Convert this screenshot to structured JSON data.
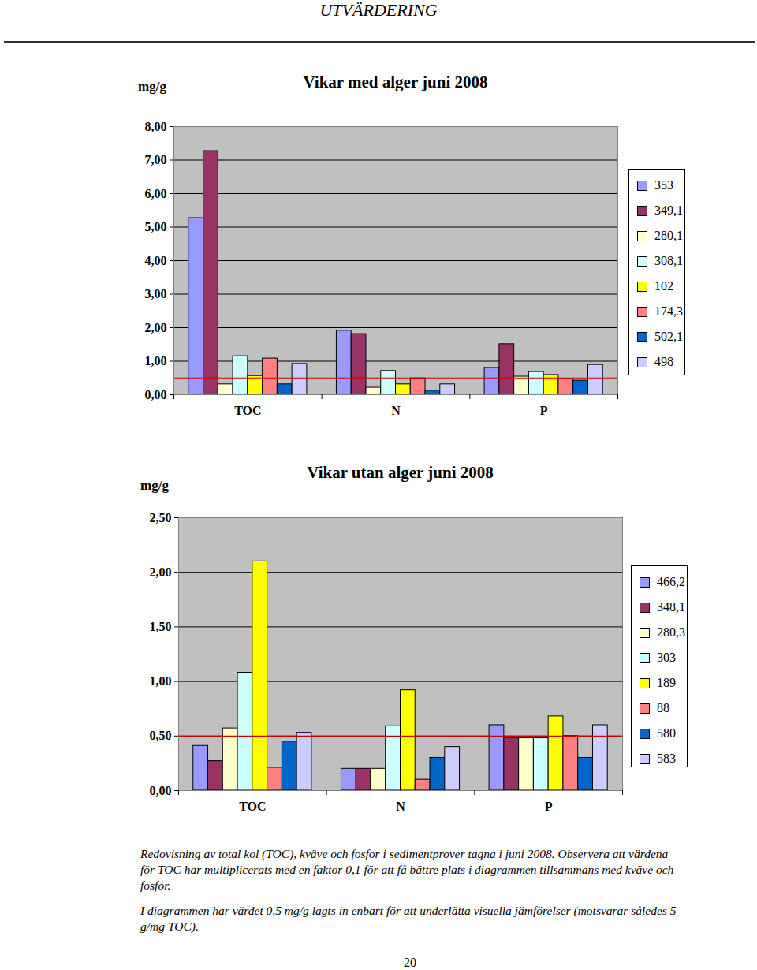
{
  "page": {
    "header": "UTVÄRDERING",
    "caption": [
      "Redovisning av total kol (TOC), kväve och fosfor i sedimentprover tagna i juni 2008. Observera att värdena för TOC har multiplicerats med en faktor 0,1 för att få bättre plats i diagrammen tillsammans med kväve och fosfor.",
      "I diagrammen har värdet 0,5 mg/g lagts in enbart för att underlätta visuella jämförelser (motsvarar således 5 g/mg TOC)."
    ],
    "page_number": 20
  },
  "chart_data": [
    {
      "type": "bar",
      "title": "Vikar med alger juni 2008",
      "ylabel": "mg/g",
      "categories": [
        "TOC",
        "N",
        "P"
      ],
      "series": [
        {
          "name": "353",
          "color": "#9999ff",
          "values": [
            5.27,
            1.91,
            0.8
          ]
        },
        {
          "name": "349,1",
          "color": "#993366",
          "values": [
            7.27,
            1.81,
            1.51
          ]
        },
        {
          "name": "280,1",
          "color": "#ffffcc",
          "values": [
            0.31,
            0.21,
            0.54
          ]
        },
        {
          "name": "308,1",
          "color": "#ccffff",
          "values": [
            1.15,
            0.71,
            0.68
          ]
        },
        {
          "name": "102",
          "color": "#ffff00",
          "values": [
            0.56,
            0.31,
            0.59
          ]
        },
        {
          "name": "174,3",
          "color": "#ff8080",
          "values": [
            1.08,
            0.49,
            0.47
          ]
        },
        {
          "name": "502,1",
          "color": "#0066cc",
          "values": [
            0.31,
            0.12,
            0.42
          ]
        },
        {
          "name": "498",
          "color": "#ccccff",
          "values": [
            0.92,
            0.31,
            0.89
          ]
        }
      ],
      "reference_line": 0.5,
      "ylim": [
        0,
        8
      ],
      "yticks": [
        {
          "value": 0,
          "label": "0,00"
        },
        {
          "value": 1,
          "label": "1,00"
        },
        {
          "value": 2,
          "label": "2,00"
        },
        {
          "value": 3,
          "label": "3,00"
        },
        {
          "value": 4,
          "label": "4,00"
        },
        {
          "value": 5,
          "label": "5,00"
        },
        {
          "value": 6,
          "label": "6,00"
        },
        {
          "value": 7,
          "label": "7,00"
        },
        {
          "value": 8,
          "label": "8,00"
        }
      ],
      "grid": true,
      "legend": "right"
    },
    {
      "type": "bar",
      "title": "Vikar utan alger juni 2008",
      "ylabel": "mg/g",
      "categories": [
        "TOC",
        "N",
        "P"
      ],
      "series": [
        {
          "name": "466,2",
          "color": "#9999ff",
          "values": [
            0.41,
            0.2,
            0.6
          ]
        },
        {
          "name": "348,1",
          "color": "#993366",
          "values": [
            0.27,
            0.2,
            0.48
          ]
        },
        {
          "name": "280,3",
          "color": "#ffffcc",
          "values": [
            0.57,
            0.2,
            0.48
          ]
        },
        {
          "name": "303",
          "color": "#ccffff",
          "values": [
            1.08,
            0.59,
            0.48
          ]
        },
        {
          "name": "189",
          "color": "#ffff00",
          "values": [
            2.1,
            0.92,
            0.68
          ]
        },
        {
          "name": "88",
          "color": "#ff8080",
          "values": [
            0.21,
            0.1,
            0.5
          ]
        },
        {
          "name": "580",
          "color": "#0066cc",
          "values": [
            0.45,
            0.3,
            0.3
          ]
        },
        {
          "name": "583",
          "color": "#ccccff",
          "values": [
            0.53,
            0.4,
            0.6
          ]
        }
      ],
      "reference_line": 0.5,
      "ylim": [
        0,
        2.5
      ],
      "yticks": [
        {
          "value": 0,
          "label": "0,00"
        },
        {
          "value": 0.5,
          "label": "0,50"
        },
        {
          "value": 1,
          "label": "1,00"
        },
        {
          "value": 1.5,
          "label": "1,50"
        },
        {
          "value": 2,
          "label": "2,00"
        },
        {
          "value": 2.5,
          "label": "2,50"
        }
      ],
      "grid": true,
      "legend": "right"
    }
  ]
}
